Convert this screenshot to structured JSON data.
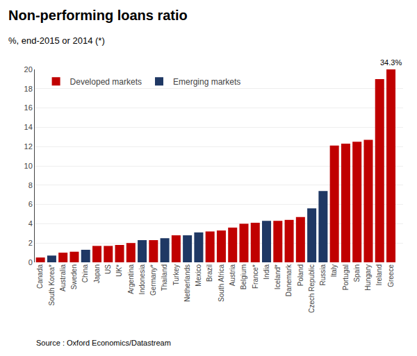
{
  "chart_data": {
    "type": "bar",
    "title": "Non-performing loans ratio",
    "subtitle": "%, end-2015 or 2014 (*)",
    "source": "Source : Oxford Economics/Datastream",
    "annotation": "34.3%",
    "categories": [
      "Canada",
      "South Korea*",
      "Australia",
      "Sweden",
      "China",
      "Japan",
      "US",
      "UK*",
      "Argentina",
      "Indonesia",
      "Germany*",
      "Thailand",
      "Turkey",
      "Netherlands",
      "Mexico",
      "Brazil",
      "South Africa",
      "Austria",
      "Belgium",
      "France*",
      "India",
      "Iceland*",
      "Danemark",
      "Poland",
      "Czech Republic",
      "Russia",
      "Italy",
      "Portugal",
      "Spain",
      "Hungary",
      "Ireland",
      "Greece"
    ],
    "series": [
      {
        "name": "Developed markets",
        "color": "#c00000",
        "values": [
          0.5,
          null,
          1.0,
          1.1,
          null,
          1.7,
          1.7,
          1.8,
          2.0,
          null,
          2.3,
          null,
          2.8,
          null,
          null,
          3.2,
          3.3,
          3.6,
          4.0,
          4.1,
          null,
          4.3,
          4.4,
          4.7,
          null,
          null,
          12.1,
          12.3,
          12.5,
          12.7,
          19.0,
          20.0
        ]
      },
      {
        "name": "Emerging markets",
        "color": "#1f3864",
        "values": [
          null,
          0.7,
          null,
          null,
          1.3,
          null,
          null,
          null,
          null,
          2.3,
          null,
          2.5,
          null,
          2.8,
          3.1,
          null,
          null,
          null,
          null,
          null,
          4.3,
          null,
          null,
          null,
          5.6,
          7.4,
          null,
          null,
          null,
          null,
          null,
          null
        ]
      }
    ],
    "ylim": [
      0,
      20
    ],
    "yticks": [
      0,
      2,
      4,
      6,
      8,
      10,
      12,
      14,
      16,
      18,
      20
    ],
    "grid": true,
    "legend": "upper left"
  }
}
